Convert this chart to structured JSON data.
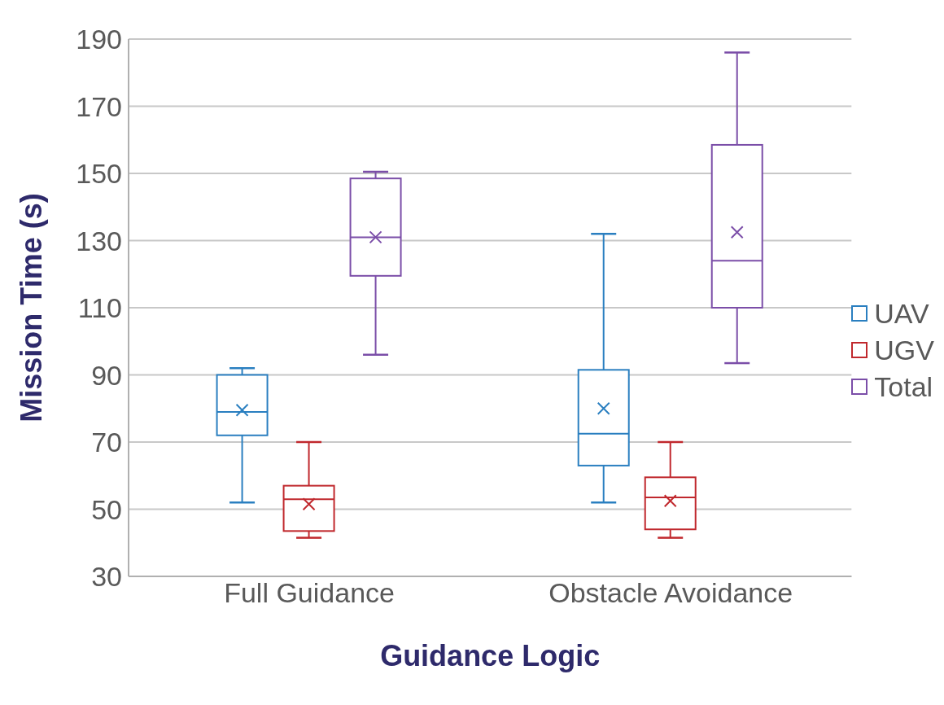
{
  "chart_data": {
    "type": "box",
    "xlabel": "Guidance Logic",
    "ylabel": "Mission Time (s)",
    "categories": [
      "Full Guidance",
      "Obstacle Avoidance"
    ],
    "ylim": [
      30,
      190
    ],
    "yticks": [
      30,
      50,
      70,
      90,
      110,
      130,
      150,
      170,
      190
    ],
    "grid": "y",
    "legend": "right",
    "marker": "cross",
    "series": [
      {
        "name": "UAV",
        "color": "#2a7fc0",
        "boxes": [
          {
            "low": 52,
            "q1": 72,
            "median": 79,
            "q3": 90,
            "high": 92,
            "mean": 79.5
          },
          {
            "low": 52,
            "q1": 63,
            "median": 72.5,
            "q3": 91.5,
            "high": 132,
            "mean": 80
          }
        ]
      },
      {
        "name": "UGV",
        "color": "#c0282d",
        "boxes": [
          {
            "low": 41.5,
            "q1": 43.5,
            "median": 53,
            "q3": 57,
            "high": 70,
            "mean": 51.5
          },
          {
            "low": 41.5,
            "q1": 44,
            "median": 53.5,
            "q3": 59.5,
            "high": 70,
            "mean": 52.5
          }
        ]
      },
      {
        "name": "Total",
        "color": "#7b4ea8",
        "boxes": [
          {
            "low": 96,
            "q1": 119.5,
            "median": 131,
            "q3": 148.5,
            "high": 150.5,
            "mean": 131
          },
          {
            "low": 93.5,
            "q1": 110,
            "median": 124,
            "q3": 158.5,
            "high": 186,
            "mean": 132.5
          }
        ]
      }
    ]
  }
}
